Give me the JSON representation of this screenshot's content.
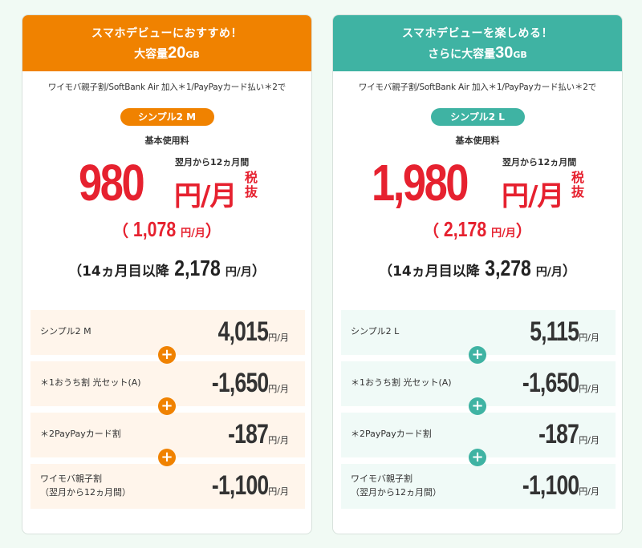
{
  "plans": [
    {
      "header_line1": "スマホデビューにおすすめ！",
      "header_prefix": "大容量",
      "header_gb": "20",
      "header_gb_unit": "GB",
      "condition": "ワイモバ親子割/SoftBank Air 加入＊1/PayPayカード払い＊2で",
      "plan_pill": "シンプル2 M",
      "base_label": "基本使用料",
      "price": "980",
      "price_unit": "円/月",
      "price_note": "翌月から12ヵ月間",
      "tax_label": "税抜",
      "tax_in_open": "（",
      "tax_in_value": "1,078",
      "tax_in_unit": "円/月",
      "tax_in_close": "）",
      "after_open": "（",
      "after_label": "14ヵ月目以降",
      "after_value": "2,178",
      "after_unit": "円/月",
      "after_close": "）",
      "breakdown": [
        {
          "label": "シンプル2 M",
          "label2": "",
          "value": "4,015",
          "unit": "円/月"
        },
        {
          "label": "＊1おうち割 光セット(A)",
          "label2": "",
          "value": "-1,650",
          "unit": "円/月"
        },
        {
          "label": "＊2PayPayカード割",
          "label2": "",
          "value": "-187",
          "unit": "円/月"
        },
        {
          "label": "ワイモバ親子割",
          "label2": "（翌月から12ヵ月間）",
          "value": "-1,100",
          "unit": "円/月"
        }
      ],
      "accent": "#f08200"
    },
    {
      "header_line1": "スマホデビューを楽しめる！",
      "header_prefix": "さらに大容量",
      "header_gb": "30",
      "header_gb_unit": "GB",
      "condition": "ワイモバ親子割/SoftBank Air 加入＊1/PayPayカード払い＊2で",
      "plan_pill": "シンプル2 L",
      "base_label": "基本使用料",
      "price": "1,980",
      "price_unit": "円/月",
      "price_note": "翌月から12ヵ月間",
      "tax_label": "税抜",
      "tax_in_open": "（",
      "tax_in_value": "2,178",
      "tax_in_unit": "円/月",
      "tax_in_close": "）",
      "after_open": "（",
      "after_label": "14ヵ月目以降",
      "after_value": "3,278",
      "after_unit": "円/月",
      "after_close": "）",
      "breakdown": [
        {
          "label": "シンプル2 L",
          "label2": "",
          "value": "5,115",
          "unit": "円/月"
        },
        {
          "label": "＊1おうち割 光セット(A)",
          "label2": "",
          "value": "-1,650",
          "unit": "円/月"
        },
        {
          "label": "＊2PayPayカード割",
          "label2": "",
          "value": "-187",
          "unit": "円/月"
        },
        {
          "label": "ワイモバ親子割",
          "label2": "（翌月から12ヵ月間）",
          "value": "-1,100",
          "unit": "円/月"
        }
      ],
      "accent": "#3fb3a3"
    }
  ],
  "plus_glyph": "+"
}
